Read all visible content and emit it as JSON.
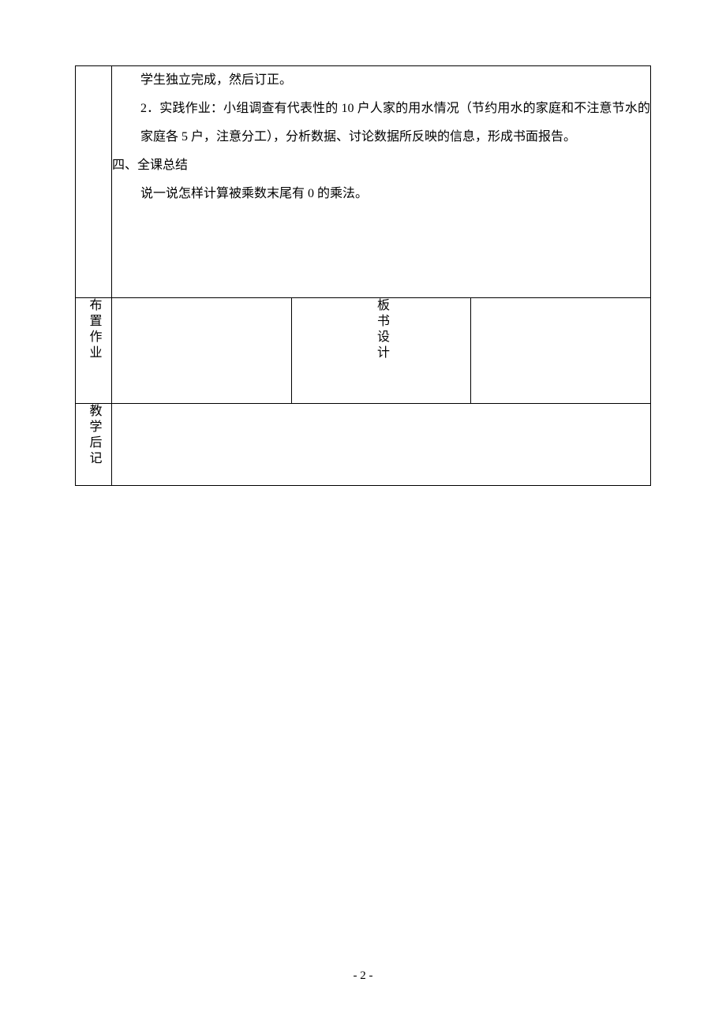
{
  "row1": {
    "p1": "学生独立完成，然后订正。",
    "p2": "2．实践作业：小组调查有代表性的 10 户人家的用水情况（节约用水的家庭和不注意节水的家庭各 5 户，注意分工），分析数据、讨论数据所反映的信息，形成书面报告。",
    "sec": "四、全课总结",
    "p3": "说一说怎样计算被乘数末尾有 0 的乘法。"
  },
  "labels": {
    "homework": "布置作业",
    "board": "板书设计",
    "notes": "教学后记"
  },
  "cells": {
    "homework_content": "",
    "board_content": "",
    "notes_content": ""
  },
  "page_number": "- 2 -",
  "style": {
    "font_size_body": 16,
    "line_height_body": 2.25,
    "border_color": "#000000",
    "text_color": "#000000",
    "background": "#ffffff"
  }
}
